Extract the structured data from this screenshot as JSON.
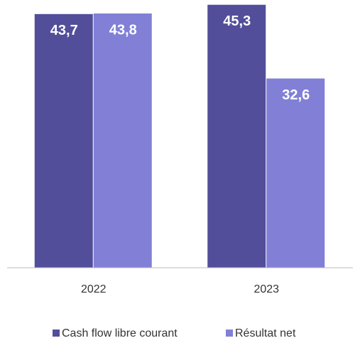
{
  "chart_data": {
    "type": "bar",
    "categories": [
      "2022",
      "2023"
    ],
    "series": [
      {
        "name": "Cash flow libre courant",
        "color": "#524e9a",
        "values": [
          43.7,
          45.3
        ],
        "value_labels": [
          "43,7",
          "45,3"
        ]
      },
      {
        "name": "Résultat net",
        "color": "#8180d6",
        "values": [
          43.8,
          32.6
        ],
        "value_labels": [
          "43,8",
          "32,6"
        ]
      }
    ],
    "ylim": [
      0,
      46
    ]
  }
}
